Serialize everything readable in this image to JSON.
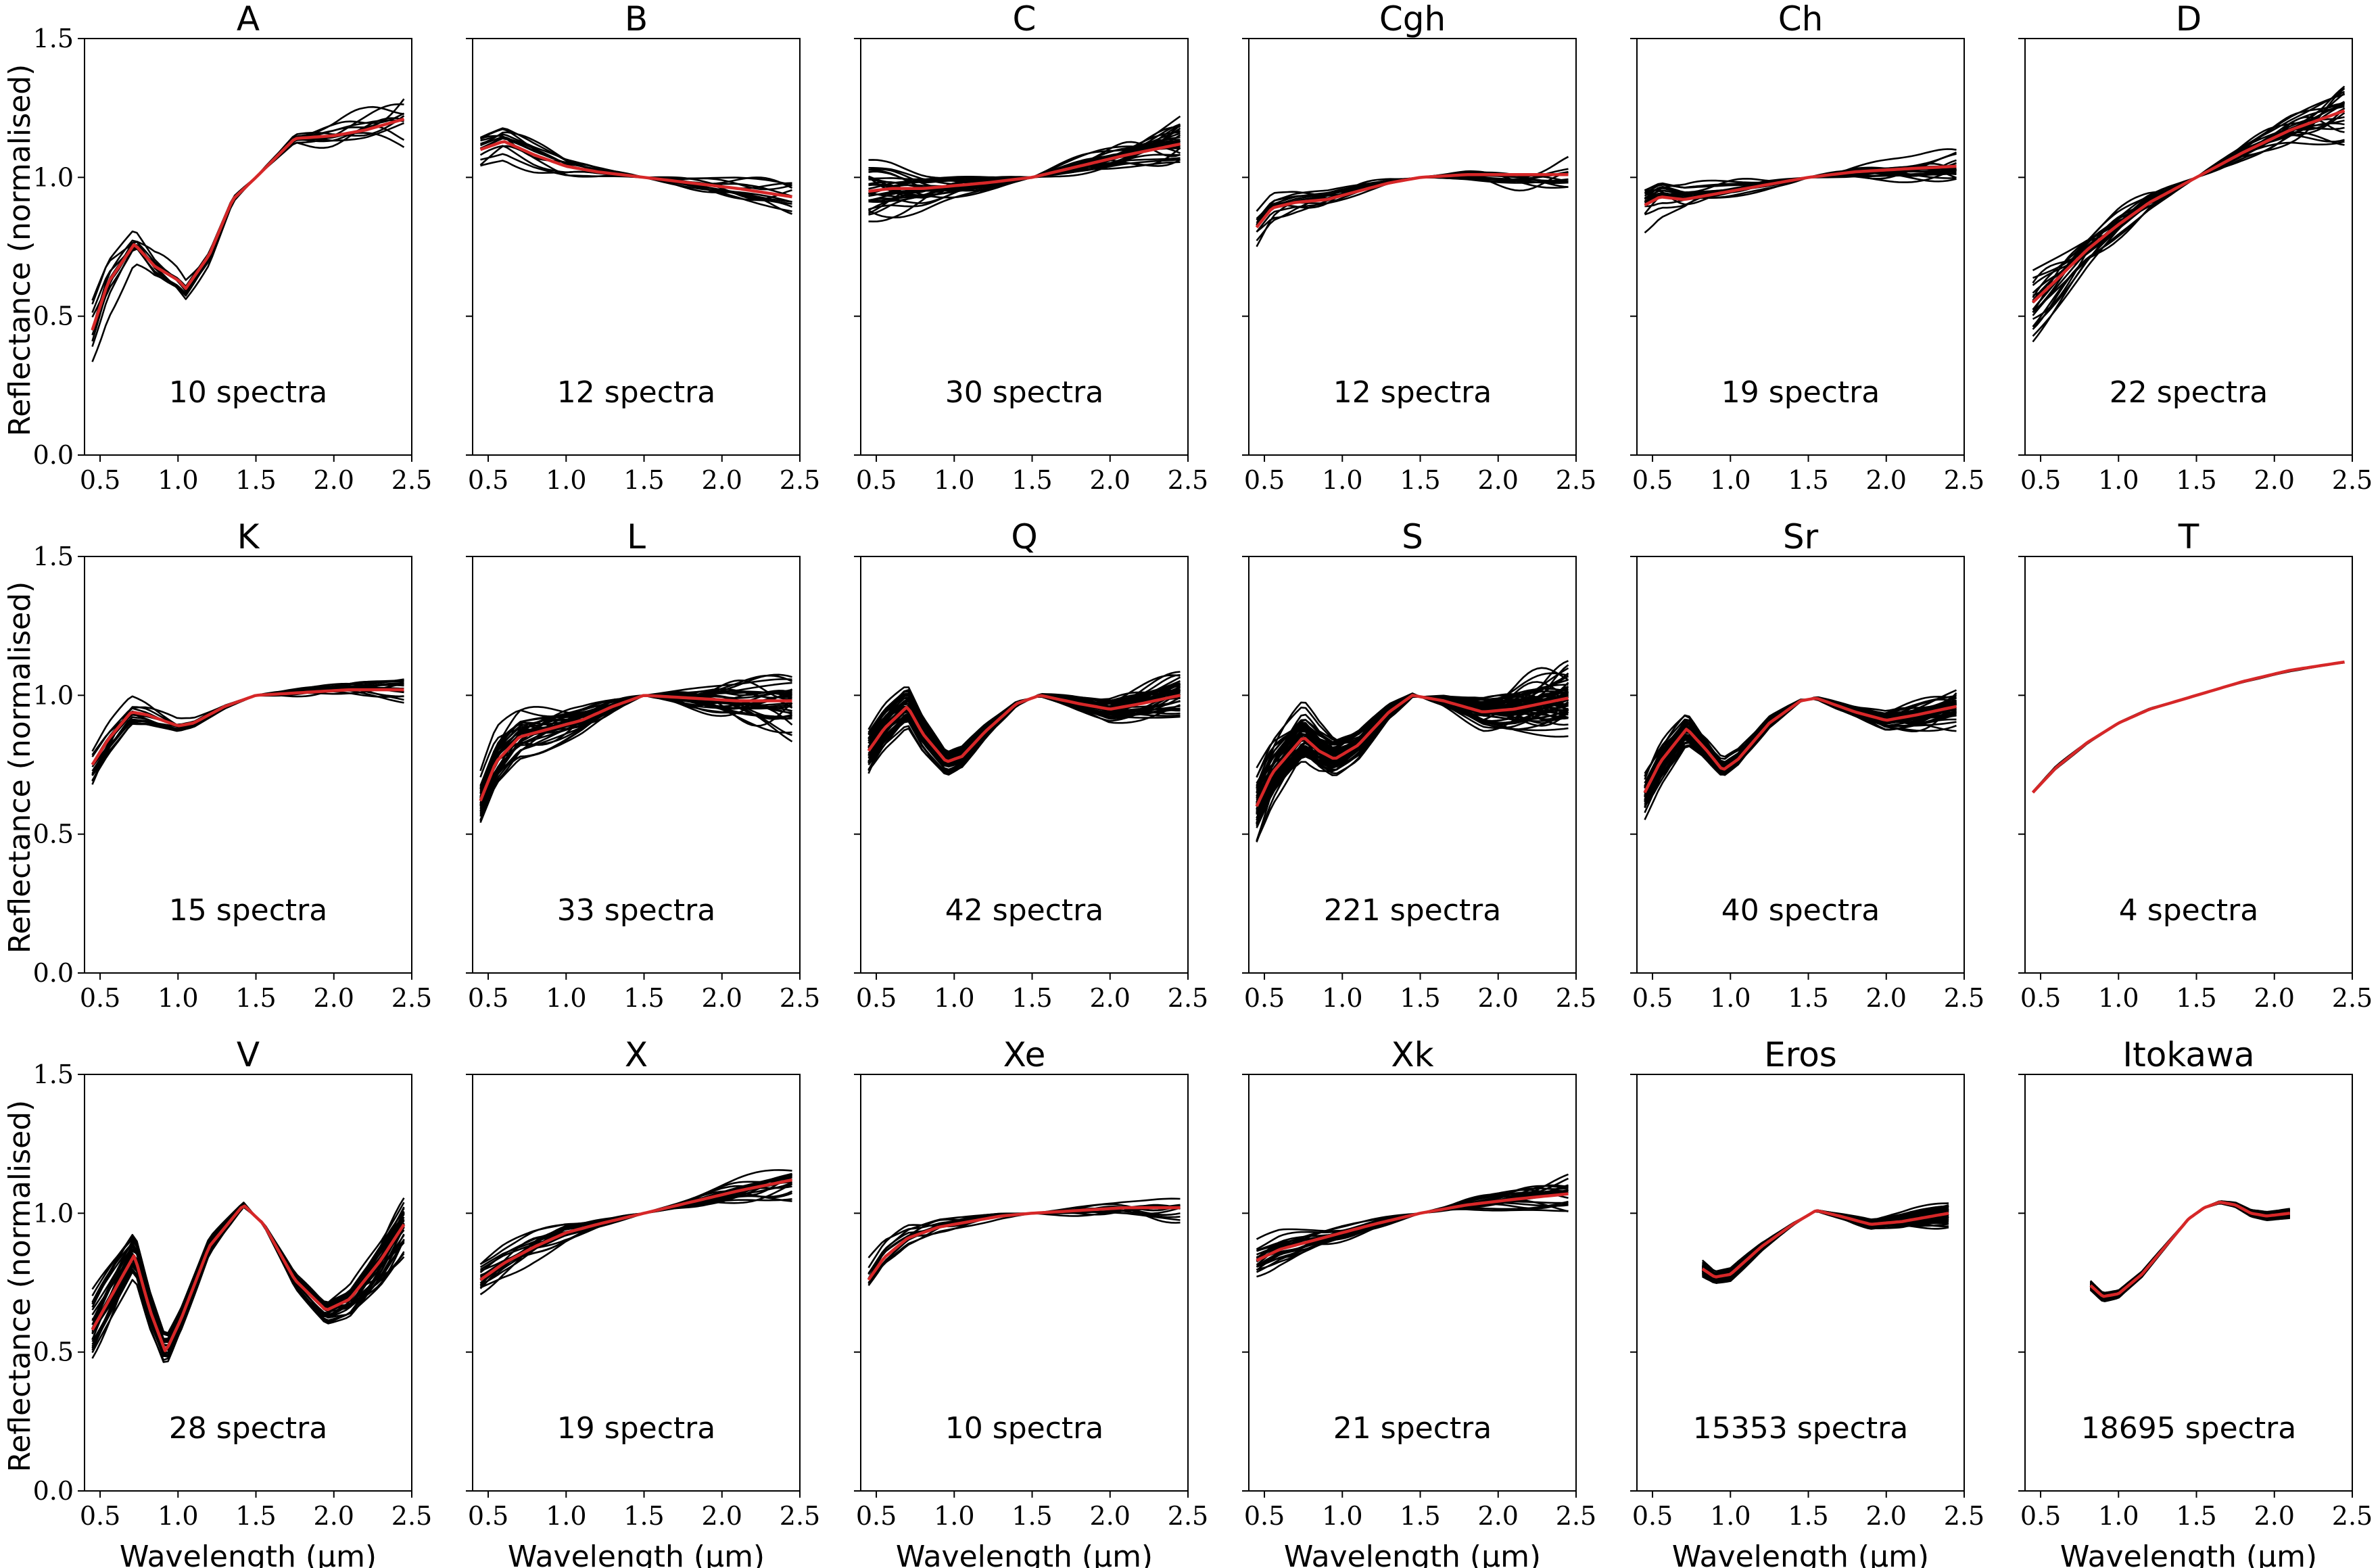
{
  "chart_data": {
    "type": "line",
    "figure_ylabel": "Reflectance (normalised)",
    "figure_xlabel": "Wavelength (µm)",
    "xlim": [
      0.4,
      2.5
    ],
    "ylim": [
      0.0,
      1.5
    ],
    "xticks": [
      "0.5",
      "1.0",
      "1.5",
      "2.0",
      "2.5"
    ],
    "yticks": [
      "0.0",
      "0.5",
      "1.0",
      "1.5"
    ],
    "normalisation_point_um": 1.5,
    "series_colors": {
      "individual": "#000000",
      "mean": "#d62728"
    },
    "panels": [
      {
        "title": "A",
        "count_label": "10 spectra",
        "n_drawn": 10,
        "spread": 0.1,
        "x_range": [
          0.45,
          2.45
        ],
        "mean": [
          [
            0.45,
            0.45
          ],
          [
            0.55,
            0.62
          ],
          [
            0.72,
            0.76
          ],
          [
            0.85,
            0.68
          ],
          [
            1.0,
            0.63
          ],
          [
            1.05,
            0.6
          ],
          [
            1.2,
            0.72
          ],
          [
            1.35,
            0.92
          ],
          [
            1.5,
            1.0
          ],
          [
            1.75,
            1.14
          ],
          [
            2.0,
            1.15
          ],
          [
            2.2,
            1.17
          ],
          [
            2.45,
            1.21
          ]
        ]
      },
      {
        "title": "B",
        "count_label": "12 spectra",
        "n_drawn": 12,
        "spread": 0.06,
        "x_range": [
          0.45,
          2.45
        ],
        "mean": [
          [
            0.45,
            1.1
          ],
          [
            0.6,
            1.13
          ],
          [
            0.8,
            1.08
          ],
          [
            1.0,
            1.04
          ],
          [
            1.2,
            1.02
          ],
          [
            1.5,
            1.0
          ],
          [
            1.8,
            0.98
          ],
          [
            2.1,
            0.96
          ],
          [
            2.45,
            0.93
          ]
        ]
      },
      {
        "title": "C",
        "count_label": "30 spectra",
        "n_drawn": 30,
        "spread": 0.07,
        "x_range": [
          0.45,
          2.45
        ],
        "mean": [
          [
            0.45,
            0.95
          ],
          [
            0.6,
            0.96
          ],
          [
            0.8,
            0.96
          ],
          [
            1.0,
            0.97
          ],
          [
            1.2,
            0.98
          ],
          [
            1.5,
            1.0
          ],
          [
            1.8,
            1.04
          ],
          [
            2.1,
            1.08
          ],
          [
            2.45,
            1.12
          ]
        ]
      },
      {
        "title": "Cgh",
        "count_label": "12 spectra",
        "n_drawn": 12,
        "spread": 0.05,
        "x_range": [
          0.45,
          2.45
        ],
        "mean": [
          [
            0.45,
            0.82
          ],
          [
            0.55,
            0.89
          ],
          [
            0.7,
            0.91
          ],
          [
            0.9,
            0.92
          ],
          [
            1.1,
            0.95
          ],
          [
            1.3,
            0.98
          ],
          [
            1.5,
            1.0
          ],
          [
            1.8,
            1.01
          ],
          [
            2.1,
            1.01
          ],
          [
            2.45,
            1.01
          ]
        ]
      },
      {
        "title": "Ch",
        "count_label": "19 spectra",
        "n_drawn": 19,
        "spread": 0.05,
        "x_range": [
          0.45,
          2.45
        ],
        "mean": [
          [
            0.45,
            0.9
          ],
          [
            0.55,
            0.93
          ],
          [
            0.7,
            0.92
          ],
          [
            0.9,
            0.94
          ],
          [
            1.1,
            0.96
          ],
          [
            1.3,
            0.98
          ],
          [
            1.5,
            1.0
          ],
          [
            1.8,
            1.02
          ],
          [
            2.1,
            1.03
          ],
          [
            2.45,
            1.04
          ]
        ]
      },
      {
        "title": "D",
        "count_label": "22 spectra",
        "n_drawn": 22,
        "spread": 0.09,
        "x_range": [
          0.45,
          2.45
        ],
        "mean": [
          [
            0.45,
            0.55
          ],
          [
            0.6,
            0.63
          ],
          [
            0.8,
            0.74
          ],
          [
            1.0,
            0.83
          ],
          [
            1.2,
            0.91
          ],
          [
            1.5,
            1.0
          ],
          [
            1.8,
            1.09
          ],
          [
            2.1,
            1.17
          ],
          [
            2.45,
            1.24
          ]
        ]
      },
      {
        "title": "K",
        "count_label": "15 spectra",
        "n_drawn": 15,
        "spread": 0.05,
        "x_range": [
          0.45,
          2.45
        ],
        "mean": [
          [
            0.45,
            0.75
          ],
          [
            0.55,
            0.84
          ],
          [
            0.7,
            0.94
          ],
          [
            0.8,
            0.93
          ],
          [
            1.0,
            0.89
          ],
          [
            1.1,
            0.9
          ],
          [
            1.3,
            0.96
          ],
          [
            1.5,
            1.0
          ],
          [
            1.8,
            1.01
          ],
          [
            2.1,
            1.02
          ],
          [
            2.45,
            1.02
          ]
        ]
      },
      {
        "title": "L",
        "count_label": "33 spectra",
        "n_drawn": 33,
        "spread": 0.08,
        "x_range": [
          0.45,
          2.45
        ],
        "mean": [
          [
            0.45,
            0.62
          ],
          [
            0.55,
            0.76
          ],
          [
            0.7,
            0.85
          ],
          [
            0.9,
            0.88
          ],
          [
            1.1,
            0.91
          ],
          [
            1.3,
            0.96
          ],
          [
            1.5,
            1.0
          ],
          [
            1.8,
            0.99
          ],
          [
            2.1,
            0.98
          ],
          [
            2.45,
            0.98
          ]
        ]
      },
      {
        "title": "Q",
        "count_label": "42 spectra",
        "n_drawn": 42,
        "spread": 0.06,
        "x_range": [
          0.45,
          2.45
        ],
        "mean": [
          [
            0.45,
            0.8
          ],
          [
            0.55,
            0.88
          ],
          [
            0.7,
            0.96
          ],
          [
            0.8,
            0.86
          ],
          [
            0.95,
            0.76
          ],
          [
            1.05,
            0.78
          ],
          [
            1.2,
            0.87
          ],
          [
            1.4,
            0.97
          ],
          [
            1.55,
            1.0
          ],
          [
            1.8,
            0.97
          ],
          [
            2.0,
            0.95
          ],
          [
            2.2,
            0.97
          ],
          [
            2.45,
            1.0
          ]
        ]
      },
      {
        "title": "S",
        "count_label": "221 spectra",
        "n_drawn": 60,
        "spread": 0.09,
        "x_range": [
          0.45,
          2.45
        ],
        "mean": [
          [
            0.45,
            0.6
          ],
          [
            0.55,
            0.72
          ],
          [
            0.75,
            0.85
          ],
          [
            0.85,
            0.8
          ],
          [
            0.95,
            0.77
          ],
          [
            1.1,
            0.82
          ],
          [
            1.3,
            0.94
          ],
          [
            1.45,
            1.0
          ],
          [
            1.65,
            0.98
          ],
          [
            1.9,
            0.94
          ],
          [
            2.1,
            0.95
          ],
          [
            2.45,
            0.99
          ]
        ]
      },
      {
        "title": "Sr",
        "count_label": "40 spectra",
        "n_drawn": 40,
        "spread": 0.06,
        "x_range": [
          0.45,
          2.45
        ],
        "mean": [
          [
            0.45,
            0.65
          ],
          [
            0.55,
            0.76
          ],
          [
            0.72,
            0.88
          ],
          [
            0.85,
            0.8
          ],
          [
            0.95,
            0.73
          ],
          [
            1.05,
            0.77
          ],
          [
            1.25,
            0.9
          ],
          [
            1.45,
            0.98
          ],
          [
            1.55,
            0.99
          ],
          [
            1.8,
            0.94
          ],
          [
            2.0,
            0.91
          ],
          [
            2.2,
            0.93
          ],
          [
            2.45,
            0.96
          ]
        ]
      },
      {
        "title": "T",
        "count_label": "4 spectra",
        "n_drawn": 4,
        "spread": 0.01,
        "x_range": [
          0.45,
          2.45
        ],
        "mean": [
          [
            0.45,
            0.65
          ],
          [
            0.6,
            0.74
          ],
          [
            0.8,
            0.83
          ],
          [
            1.0,
            0.9
          ],
          [
            1.2,
            0.95
          ],
          [
            1.5,
            1.0
          ],
          [
            1.8,
            1.05
          ],
          [
            2.1,
            1.09
          ],
          [
            2.45,
            1.12
          ]
        ]
      },
      {
        "title": "V",
        "count_label": "28 spectra",
        "n_drawn": 28,
        "spread": 0.08,
        "x_range": [
          0.45,
          2.45
        ],
        "mean": [
          [
            0.45,
            0.58
          ],
          [
            0.55,
            0.68
          ],
          [
            0.72,
            0.85
          ],
          [
            0.82,
            0.65
          ],
          [
            0.92,
            0.5
          ],
          [
            1.02,
            0.62
          ],
          [
            1.2,
            0.88
          ],
          [
            1.42,
            1.03
          ],
          [
            1.55,
            0.96
          ],
          [
            1.75,
            0.76
          ],
          [
            1.95,
            0.65
          ],
          [
            2.1,
            0.69
          ],
          [
            2.3,
            0.83
          ],
          [
            2.45,
            0.96
          ]
        ]
      },
      {
        "title": "X",
        "count_label": "19 spectra",
        "n_drawn": 19,
        "spread": 0.05,
        "x_range": [
          0.45,
          2.45
        ],
        "mean": [
          [
            0.45,
            0.76
          ],
          [
            0.6,
            0.82
          ],
          [
            0.8,
            0.88
          ],
          [
            1.0,
            0.93
          ],
          [
            1.2,
            0.96
          ],
          [
            1.5,
            1.0
          ],
          [
            1.8,
            1.04
          ],
          [
            2.1,
            1.08
          ],
          [
            2.45,
            1.12
          ]
        ]
      },
      {
        "title": "Xe",
        "count_label": "10 spectra",
        "n_drawn": 10,
        "spread": 0.04,
        "x_range": [
          0.45,
          2.45
        ],
        "mean": [
          [
            0.45,
            0.76
          ],
          [
            0.55,
            0.84
          ],
          [
            0.7,
            0.91
          ],
          [
            0.9,
            0.95
          ],
          [
            1.1,
            0.97
          ],
          [
            1.3,
            0.99
          ],
          [
            1.5,
            1.0
          ],
          [
            1.8,
            1.01
          ],
          [
            2.1,
            1.02
          ],
          [
            2.45,
            1.02
          ]
        ]
      },
      {
        "title": "Xk",
        "count_label": "21 spectra",
        "n_drawn": 21,
        "spread": 0.05,
        "x_range": [
          0.45,
          2.45
        ],
        "mean": [
          [
            0.45,
            0.83
          ],
          [
            0.6,
            0.87
          ],
          [
            0.8,
            0.9
          ],
          [
            1.0,
            0.93
          ],
          [
            1.2,
            0.96
          ],
          [
            1.5,
            1.0
          ],
          [
            1.8,
            1.03
          ],
          [
            2.1,
            1.05
          ],
          [
            2.45,
            1.07
          ]
        ]
      },
      {
        "title": "Eros",
        "count_label": "15353 spectra",
        "n_drawn": 60,
        "spread": 0.03,
        "x_range": [
          0.82,
          2.4
        ],
        "mean": [
          [
            0.82,
            0.8
          ],
          [
            0.9,
            0.77
          ],
          [
            1.0,
            0.78
          ],
          [
            1.2,
            0.88
          ],
          [
            1.4,
            0.96
          ],
          [
            1.55,
            1.01
          ],
          [
            1.7,
            0.99
          ],
          [
            1.9,
            0.96
          ],
          [
            2.1,
            0.97
          ],
          [
            2.4,
            1.0
          ]
        ]
      },
      {
        "title": "Itokawa",
        "count_label": "18695 spectra",
        "n_drawn": 60,
        "spread": 0.02,
        "x_range": [
          0.82,
          2.1
        ],
        "mean": [
          [
            0.82,
            0.74
          ],
          [
            0.9,
            0.7
          ],
          [
            1.0,
            0.71
          ],
          [
            1.15,
            0.78
          ],
          [
            1.3,
            0.88
          ],
          [
            1.45,
            0.98
          ],
          [
            1.55,
            1.02
          ],
          [
            1.65,
            1.04
          ],
          [
            1.75,
            1.03
          ],
          [
            1.85,
            1.0
          ],
          [
            1.95,
            0.99
          ],
          [
            2.1,
            1.0
          ]
        ]
      }
    ]
  }
}
